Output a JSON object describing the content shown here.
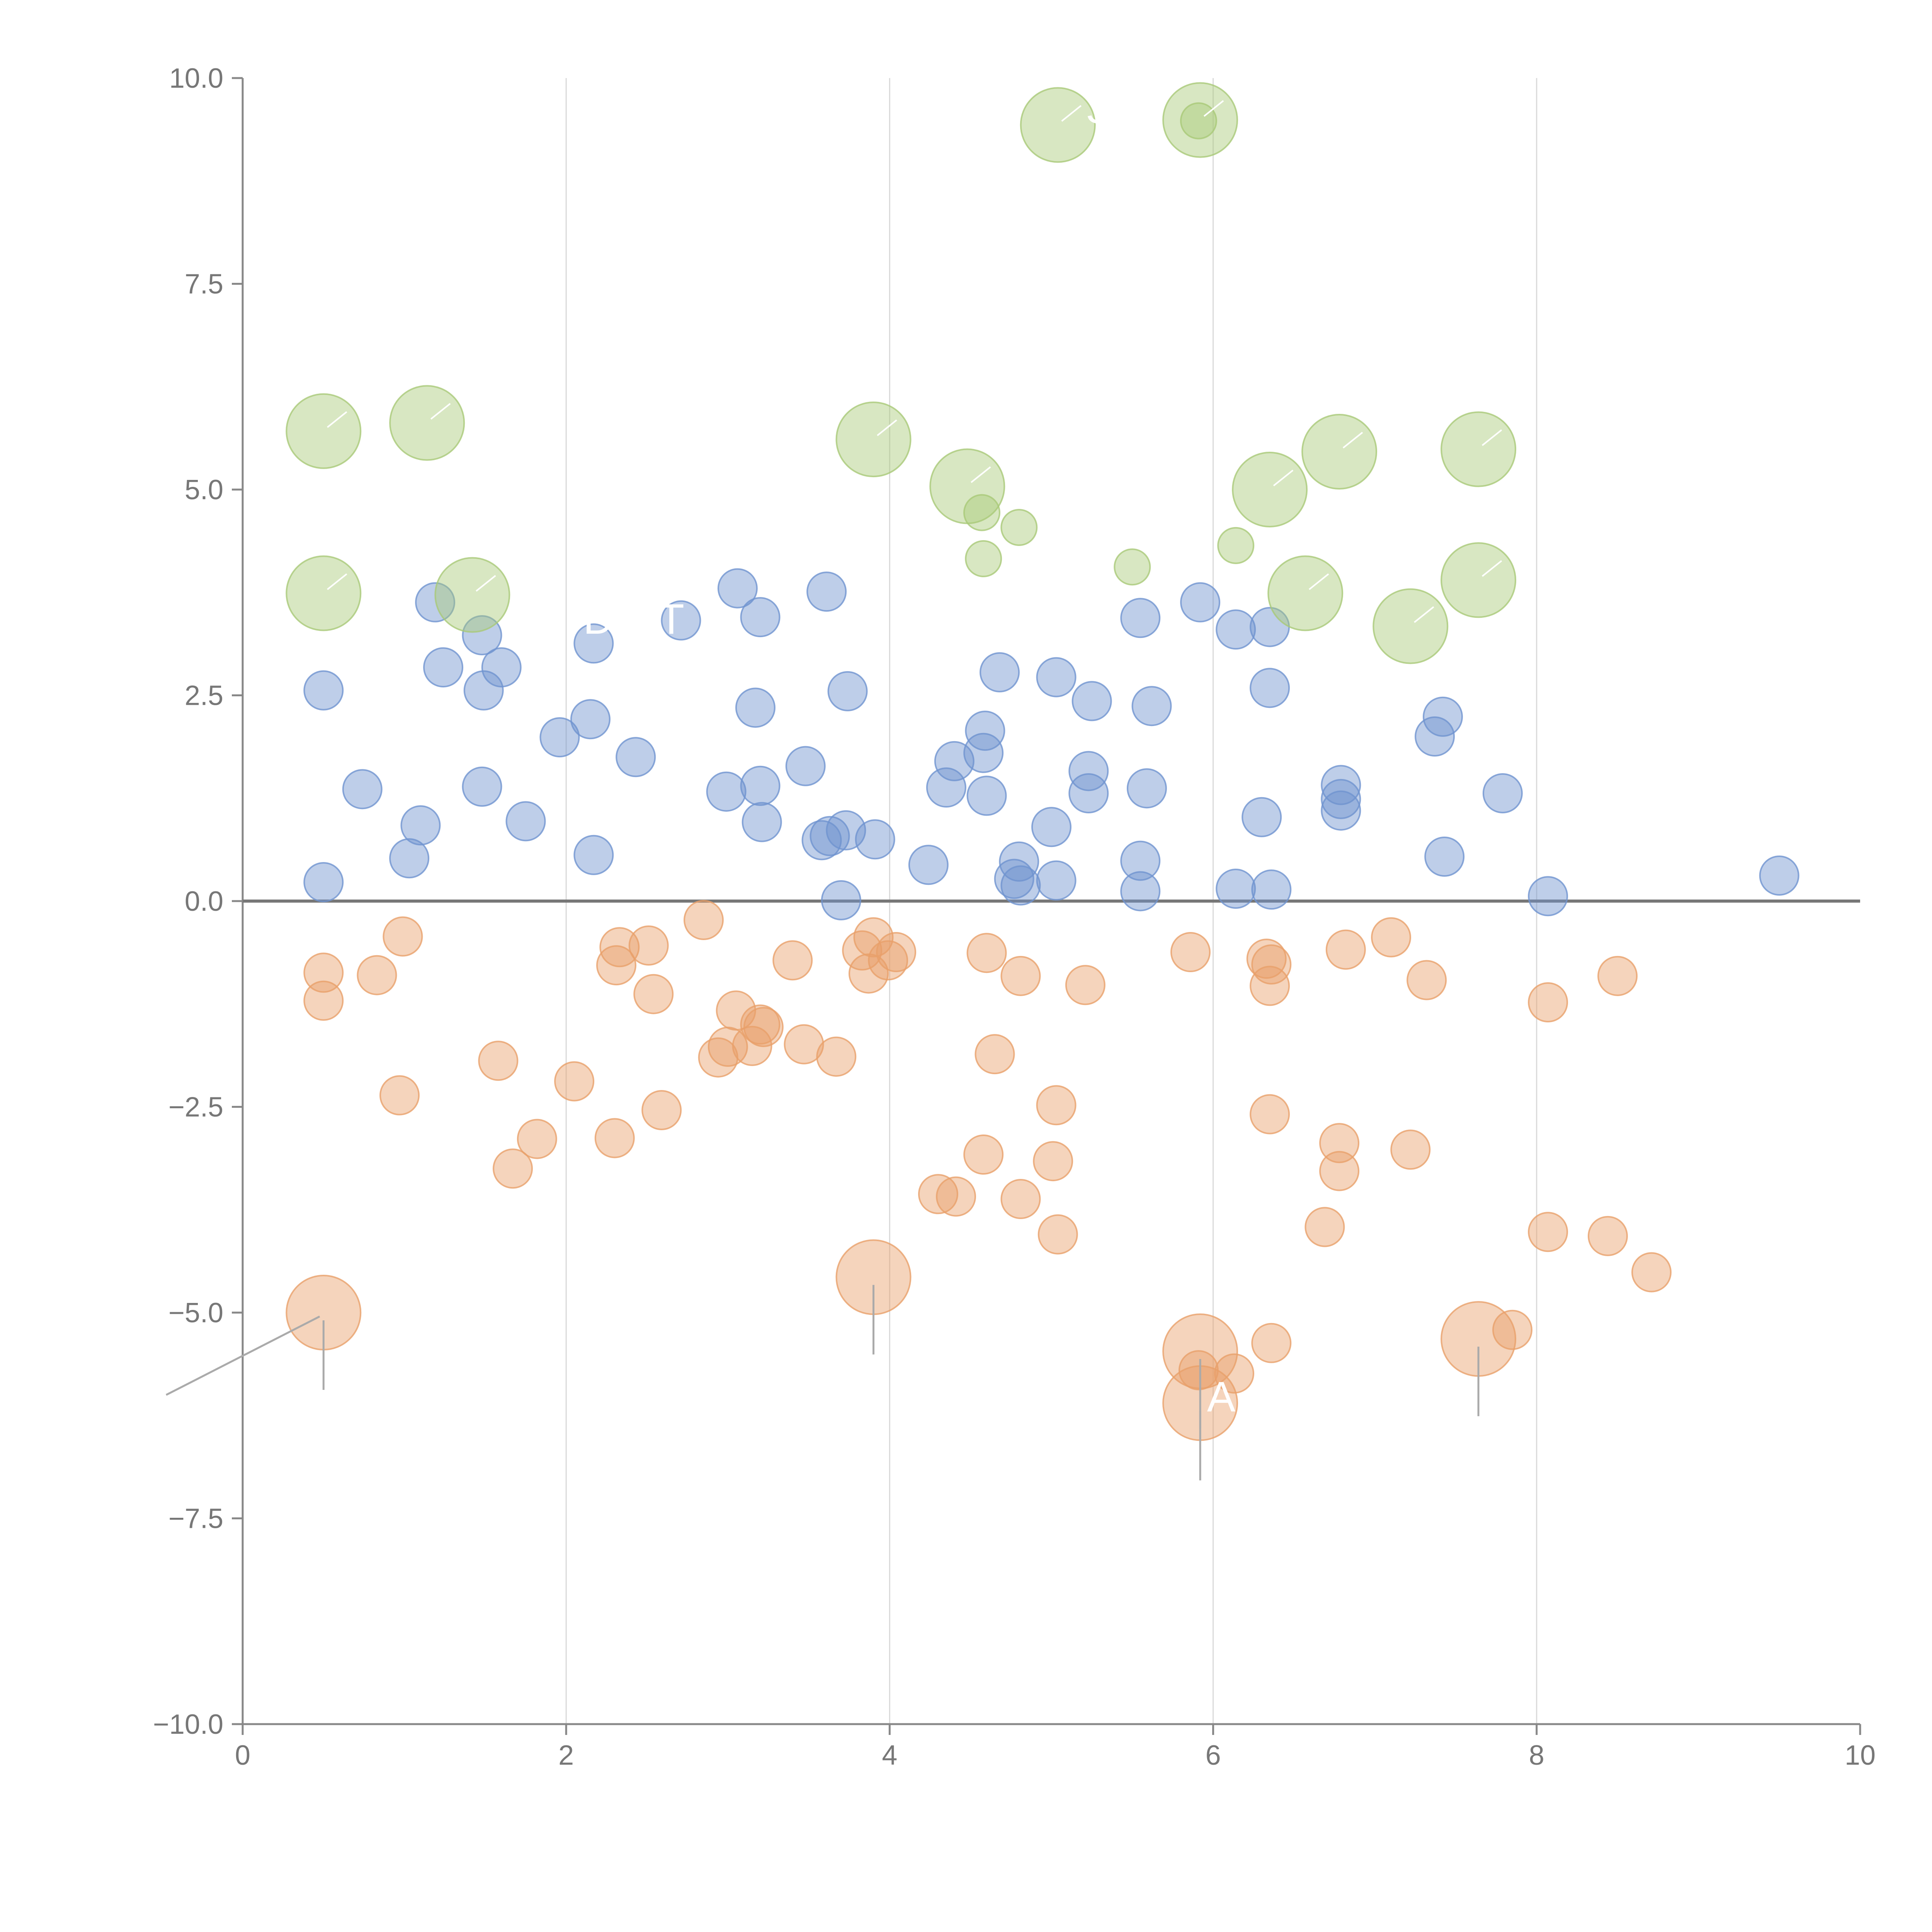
{
  "chart_data": {
    "type": "scatter",
    "title": "",
    "xlabel": "",
    "ylabel": "",
    "xlim": [
      0,
      10
    ],
    "ylim": [
      -10,
      10
    ],
    "x_ticks": [
      0,
      2,
      4,
      6,
      8,
      10
    ],
    "x_tick_labels": [
      "0",
      "2",
      "4",
      "6",
      "8",
      "10"
    ],
    "y_ticks": [
      -10,
      -7.5,
      -5,
      -2.5,
      0,
      2.5,
      5,
      7.5,
      10
    ],
    "y_tick_labels": [
      "−10.0",
      "−7.5",
      "−5.0",
      "−2.5",
      "0.0",
      "2.5",
      "5.0",
      "7.5",
      "10.0"
    ],
    "grid": "vertical lines at x ticks",
    "legend": "none",
    "colors": {
      "blue": "#6f93cf",
      "orange": "#e8a06a",
      "green": "#a9c978"
    },
    "series": [
      {
        "name": "blue",
        "color": "#6f93cf",
        "points": [
          [
            0.5,
            0.23
          ],
          [
            0.74,
            1.36
          ],
          [
            1.03,
            0.52
          ],
          [
            1.1,
            0.92
          ],
          [
            1.19,
            3.63
          ],
          [
            1.24,
            2.84
          ],
          [
            1.48,
            3.23
          ],
          [
            1.49,
            2.56
          ],
          [
            1.48,
            1.39
          ],
          [
            1.6,
            2.84
          ],
          [
            1.75,
            0.97
          ],
          [
            1.96,
            1.99
          ],
          [
            2.15,
            2.21
          ],
          [
            2.17,
            0.56
          ],
          [
            2.17,
            3.13
          ],
          [
            2.43,
            1.75
          ],
          [
            2.71,
            3.41
          ],
          [
            2.99,
            1.33
          ],
          [
            3.06,
            3.8
          ],
          [
            3.17,
            2.35
          ],
          [
            3.2,
            3.45
          ],
          [
            3.2,
            1.4
          ],
          [
            3.21,
            0.96
          ],
          [
            3.48,
            1.64
          ],
          [
            3.58,
            0.74
          ],
          [
            3.61,
            3.76
          ],
          [
            3.63,
            0.79
          ],
          [
            3.7,
            0.01
          ],
          [
            3.73,
            0.86
          ],
          [
            3.74,
            2.55
          ],
          [
            3.91,
            0.75
          ],
          [
            4.24,
            0.44
          ],
          [
            4.35,
            1.38
          ],
          [
            4.4,
            1.7
          ],
          [
            4.58,
            1.8
          ],
          [
            4.59,
            2.07
          ],
          [
            4.6,
            1.28
          ],
          [
            4.68,
            2.78
          ],
          [
            4.77,
            0.27
          ],
          [
            4.8,
            0.48
          ],
          [
            4.81,
            0.19
          ],
          [
            5.0,
            0.9
          ],
          [
            5.03,
            2.72
          ],
          [
            5.03,
            0.25
          ],
          [
            5.23,
            1.58
          ],
          [
            5.23,
            1.31
          ],
          [
            5.25,
            2.43
          ],
          [
            5.55,
            3.44
          ],
          [
            5.55,
            0.49
          ],
          [
            5.55,
            0.12
          ],
          [
            5.59,
            1.37
          ],
          [
            5.62,
            2.37
          ],
          [
            5.92,
            3.63
          ],
          [
            6.14,
            3.3
          ],
          [
            6.14,
            0.15
          ],
          [
            6.3,
            1.02
          ],
          [
            6.35,
            3.33
          ],
          [
            6.35,
            2.59
          ],
          [
            6.36,
            0.14
          ],
          [
            6.79,
            1.41
          ],
          [
            6.79,
            1.24
          ],
          [
            6.79,
            1.1
          ],
          [
            7.37,
            2.0
          ],
          [
            7.42,
            2.24
          ],
          [
            7.43,
            0.54
          ],
          [
            7.79,
            1.31
          ],
          [
            8.07,
            0.06
          ],
          [
            9.5,
            0.31
          ],
          [
            0.5,
            2.56
          ]
        ]
      },
      {
        "name": "orange",
        "color": "#e8a06a",
        "points": [
          [
            0.5,
            -0.87
          ],
          [
            0.5,
            -1.21
          ],
          [
            0.83,
            -0.9
          ],
          [
            0.97,
            -2.36
          ],
          [
            0.99,
            -0.43
          ],
          [
            1.58,
            -1.94
          ],
          [
            1.67,
            -3.25
          ],
          [
            1.82,
            -2.89
          ],
          [
            2.05,
            -2.19
          ],
          [
            2.3,
            -2.88
          ],
          [
            2.31,
            -0.78
          ],
          [
            2.33,
            -0.56
          ],
          [
            2.51,
            -0.54
          ],
          [
            2.54,
            -1.13
          ],
          [
            2.59,
            -2.54
          ],
          [
            2.85,
            -0.23
          ],
          [
            2.94,
            -1.9
          ],
          [
            3.0,
            -1.77
          ],
          [
            3.05,
            -1.33
          ],
          [
            3.15,
            -1.76
          ],
          [
            3.2,
            -1.5
          ],
          [
            3.22,
            -1.53
          ],
          [
            3.4,
            -0.72
          ],
          [
            3.47,
            -1.74
          ],
          [
            3.67,
            -1.89
          ],
          [
            3.83,
            -0.6
          ],
          [
            3.87,
            -0.88
          ],
          [
            3.9,
            -0.44
          ],
          [
            3.99,
            -0.72
          ],
          [
            4.04,
            -0.62
          ],
          [
            4.3,
            -3.56
          ],
          [
            4.41,
            -3.59
          ],
          [
            4.58,
            -3.08
          ],
          [
            4.6,
            -0.63
          ],
          [
            4.65,
            -1.86
          ],
          [
            4.81,
            -0.91
          ],
          [
            4.81,
            -3.62
          ],
          [
            5.01,
            -3.16
          ],
          [
            5.03,
            -2.48
          ],
          [
            5.04,
            -4.05
          ],
          [
            5.21,
            -1.02
          ],
          [
            5.86,
            -0.62
          ],
          [
            5.91,
            -5.7
          ],
          [
            6.13,
            -5.74
          ],
          [
            6.33,
            -0.7
          ],
          [
            6.36,
            -0.77
          ],
          [
            6.35,
            -1.03
          ],
          [
            6.35,
            -2.59
          ],
          [
            6.36,
            -5.37
          ],
          [
            6.69,
            -3.96
          ],
          [
            6.78,
            -2.94
          ],
          [
            6.78,
            -3.28
          ],
          [
            6.82,
            -0.59
          ],
          [
            7.1,
            -0.44
          ],
          [
            7.22,
            -3.02
          ],
          [
            7.32,
            -0.96
          ],
          [
            7.85,
            -5.21
          ],
          [
            8.07,
            -1.23
          ],
          [
            8.07,
            -4.02
          ],
          [
            8.44,
            -4.07
          ],
          [
            8.5,
            -0.91
          ],
          [
            8.71,
            -4.51
          ]
        ]
      },
      {
        "name": "green",
        "color": "#a9c978",
        "points": [
          [
            4.57,
            4.72
          ],
          [
            4.58,
            4.16
          ],
          [
            4.8,
            4.54
          ],
          [
            5.5,
            4.06
          ],
          [
            5.91,
            9.48
          ],
          [
            6.14,
            4.32
          ]
        ]
      },
      {
        "name": "green-large",
        "color": "#a9c978",
        "points": [
          [
            0.5,
            5.71
          ],
          [
            0.5,
            3.74
          ],
          [
            1.14,
            5.81
          ],
          [
            1.42,
            3.72
          ],
          [
            3.9,
            5.61
          ],
          [
            4.48,
            5.04
          ],
          [
            5.04,
            9.43
          ],
          [
            5.92,
            9.49
          ],
          [
            6.35,
            5.0
          ],
          [
            6.57,
            3.74
          ],
          [
            6.78,
            5.46
          ],
          [
            7.22,
            3.34
          ],
          [
            7.64,
            5.49
          ],
          [
            7.64,
            3.9
          ]
        ]
      },
      {
        "name": "orange-large",
        "color": "#e8a06a",
        "points": [
          [
            0.5,
            -5.0
          ],
          [
            3.9,
            -4.57
          ],
          [
            5.92,
            -5.47
          ],
          [
            5.92,
            -6.1
          ],
          [
            7.64,
            -5.32
          ]
        ]
      }
    ],
    "annotations": [
      {
        "text": "D",
        "x": 2.2,
        "y": 3.25
      },
      {
        "text": "T",
        "x": 2.65,
        "y": 3.25
      },
      {
        "text": "S",
        "x": 5.3,
        "y": 9.45
      },
      {
        "text": "A",
        "x": 6.05,
        "y": -6.2
      }
    ]
  }
}
